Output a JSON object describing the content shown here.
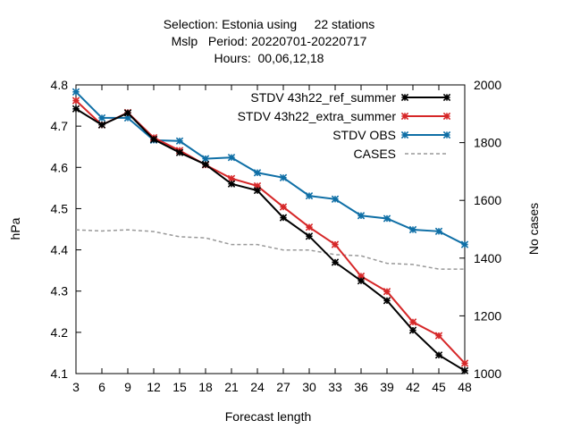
{
  "chart_data": {
    "type": "line",
    "title_lines": [
      "Selection: Estonia using     22 stations",
      "Mslp   Period: 20220701-20220717",
      "Hours:  00,06,12,18"
    ],
    "xlabel": "Forecast length",
    "ylabel": "hPa",
    "y2label": "No cases",
    "x": [
      3,
      6,
      9,
      12,
      15,
      18,
      21,
      24,
      27,
      30,
      33,
      36,
      39,
      42,
      45,
      48
    ],
    "xlim": [
      3,
      48
    ],
    "ylim": [
      4.1,
      4.8
    ],
    "y2lim": [
      1000,
      2000
    ],
    "yticks": [
      "4.1",
      "4.2",
      "4.3",
      "4.4",
      "4.5",
      "4.6",
      "4.7",
      "4.8"
    ],
    "y2ticks": [
      "1000",
      "1200",
      "1400",
      "1600",
      "1800",
      "2000"
    ],
    "legend_position": "top-right",
    "grid": false,
    "series": [
      {
        "name": "STDV 43h22_ref_summer",
        "color": "#000000",
        "axis": "left",
        "style": "solid",
        "marker": "x",
        "values": [
          4.742,
          4.703,
          4.732,
          4.668,
          4.636,
          4.607,
          4.56,
          4.544,
          4.478,
          4.433,
          4.37,
          4.325,
          4.277,
          4.205,
          4.145,
          4.107
        ]
      },
      {
        "name": "STDV 43h22_extra_summer",
        "color": "#d62728",
        "axis": "left",
        "style": "solid",
        "marker": "x",
        "values": [
          4.762,
          4.703,
          4.733,
          4.672,
          4.641,
          4.606,
          4.573,
          4.555,
          4.504,
          4.455,
          4.413,
          4.336,
          4.299,
          4.225,
          4.192,
          4.125
        ]
      },
      {
        "name": "STDV OBS",
        "color": "#0f6fa6",
        "axis": "left",
        "style": "solid",
        "marker": "x",
        "values": [
          4.783,
          4.72,
          4.72,
          4.666,
          4.664,
          4.621,
          4.624,
          4.587,
          4.575,
          4.531,
          4.523,
          4.483,
          4.476,
          4.449,
          4.445,
          4.413
        ]
      },
      {
        "name": "CASES",
        "color": "#999999",
        "axis": "right",
        "style": "dashed",
        "marker": "none",
        "values": [
          1498,
          1494,
          1498,
          1492,
          1474,
          1470,
          1447,
          1447,
          1428,
          1428,
          1412,
          1408,
          1382,
          1378,
          1362,
          1362
        ]
      }
    ]
  }
}
